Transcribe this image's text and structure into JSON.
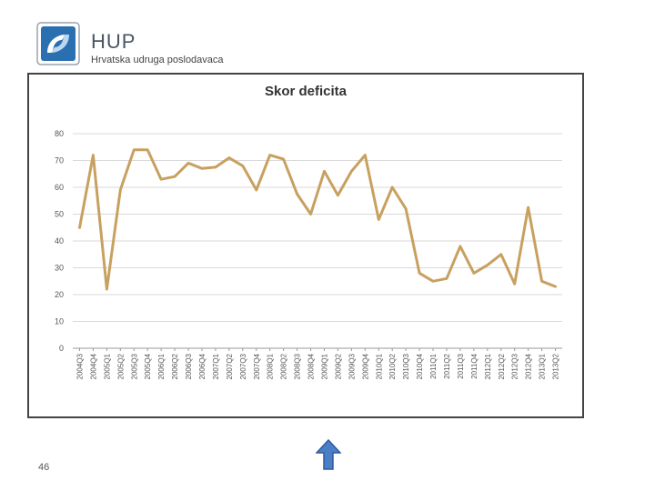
{
  "header": {
    "brand_name": "HUP",
    "brand_subtitle": "Hrvatska udruga poslodavaca",
    "logo_icon": "hup-logo-icon"
  },
  "footer": {
    "page_number": "46",
    "nav_icon": "up-arrow-icon"
  },
  "colors": {
    "line": "#c8a060",
    "grid": "#d9d9d9",
    "logo_blue": "#2a6fb0",
    "arrow_blue": "#4a7fc8"
  },
  "chart_data": {
    "type": "line",
    "title": "Skor deficita",
    "xlabel": "",
    "ylabel": "",
    "ylim": [
      0,
      80
    ],
    "yticks": [
      0,
      10,
      20,
      30,
      40,
      50,
      60,
      70,
      80
    ],
    "grid": true,
    "legend": "none",
    "categories": [
      "2004Q3",
      "2004Q4",
      "2005Q1",
      "2005Q2",
      "2005Q3",
      "2005Q4",
      "2006Q1",
      "2006Q2",
      "2006Q3",
      "2006Q4",
      "2007Q1",
      "2007Q2",
      "2007Q3",
      "2007Q4",
      "2008Q1",
      "2008Q2",
      "2008Q3",
      "2008Q4",
      "2009Q1",
      "2009Q2",
      "2009Q3",
      "2009Q4",
      "2010Q1",
      "2010Q2",
      "2010Q3",
      "2010Q4",
      "2011Q1",
      "2011Q2",
      "2011Q3",
      "2011Q4",
      "2012Q1",
      "2012Q2",
      "2012Q3",
      "2012Q4",
      "2013Q1",
      "2013Q2"
    ],
    "series": [
      {
        "values": [
          45,
          72,
          22,
          59,
          74,
          74,
          63,
          64,
          69,
          67,
          67.5,
          71,
          68,
          59,
          72,
          70.5,
          57.5,
          50,
          66,
          57,
          66,
          72,
          48,
          60,
          52,
          28,
          25,
          26,
          38,
          28,
          31,
          35,
          24,
          52.5,
          25,
          23
        ]
      }
    ]
  }
}
